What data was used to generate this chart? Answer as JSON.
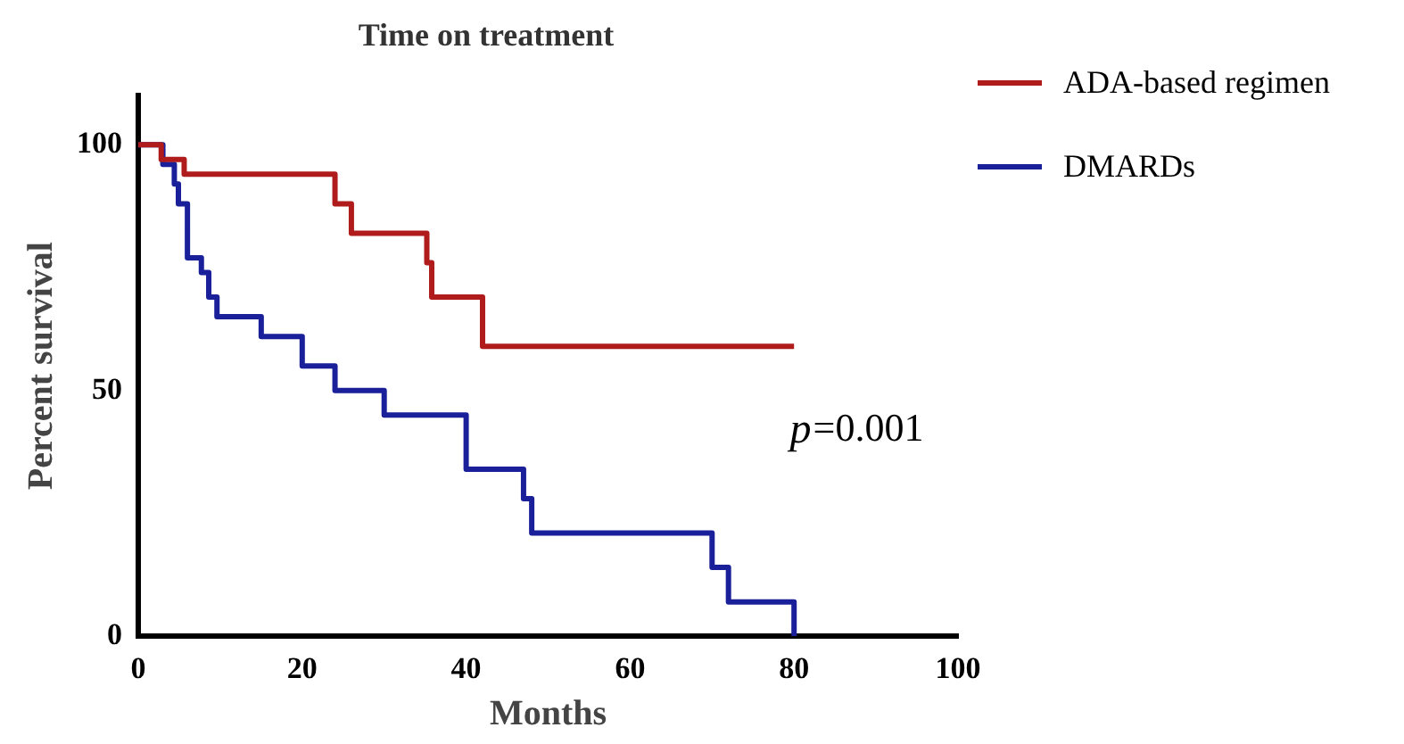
{
  "chart_data": {
    "type": "step",
    "title": "Time on treatment",
    "xlabel": "Months",
    "ylabel": "Percent survival",
    "xlim": [
      0,
      100
    ],
    "xticks": [
      0,
      20,
      40,
      60,
      80,
      100
    ],
    "ylim": [
      0,
      110
    ],
    "yticks": [
      0,
      50,
      100
    ],
    "grid": false,
    "legend": "top right",
    "annotations": [
      "p=0.001"
    ],
    "series": [
      {
        "name": "ADA-based regimen",
        "color": "#b01c1c",
        "x": [
          0,
          2.8,
          5.6,
          24,
          26,
          35.2,
          35.8,
          42,
          80
        ],
        "values": [
          100,
          97,
          94,
          88,
          82,
          76,
          69,
          59,
          59
        ]
      },
      {
        "name": "DMARDs",
        "color": "#1a1f9a",
        "x": [
          0,
          3,
          4.4,
          4.9,
          6,
          7.7,
          8.6,
          9.6,
          15,
          20,
          24,
          30,
          40,
          47,
          48,
          70,
          72,
          80
        ],
        "values": [
          100,
          96,
          92,
          88,
          77,
          74,
          69,
          65,
          61,
          55,
          50,
          45,
          34,
          28,
          21,
          14,
          7,
          0
        ]
      }
    ]
  }
}
